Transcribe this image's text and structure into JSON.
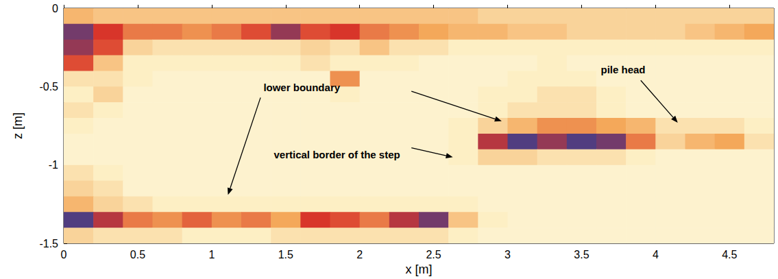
{
  "chart_data": {
    "type": "heatmap",
    "x_label": "x [m]",
    "y_label": "z [m]",
    "xlim": [
      0,
      4.8
    ],
    "ylim": [
      -1.5,
      0
    ],
    "xticks": [
      0,
      0.5,
      1,
      1.5,
      2,
      2.5,
      3,
      3.5,
      4,
      4.5
    ],
    "yticks": [
      -1.5,
      -1,
      -0.5,
      0
    ],
    "grid": false,
    "tick_labels": true,
    "x": [
      0.1,
      0.3,
      0.5,
      0.7,
      0.9,
      1.1,
      1.3,
      1.5,
      1.7,
      1.9,
      2.1,
      2.3,
      2.5,
      2.7,
      2.9,
      3.1,
      3.3,
      3.5,
      3.7,
      3.9,
      4.1,
      4.3,
      4.5,
      4.7
    ],
    "z": [
      -0.05,
      -0.15,
      -0.25,
      -0.35,
      -0.45,
      -0.55,
      -0.65,
      -0.75,
      -0.85,
      -0.95,
      -1.05,
      -1.15,
      -1.25,
      -1.35,
      -1.45
    ],
    "cells": [
      [
        0.45,
        0.4,
        0.4,
        0.4,
        0.4,
        0.4,
        0.4,
        0.4,
        0.4,
        0.4,
        0.4,
        0.4,
        0.4,
        0.4,
        0.35,
        0.35,
        0.35,
        0.35,
        0.35,
        0.35,
        0.35,
        0.35,
        0.35,
        0.35
      ],
      [
        0.9,
        0.75,
        0.6,
        0.6,
        0.55,
        0.6,
        0.7,
        0.85,
        0.7,
        0.75,
        0.6,
        0.55,
        0.5,
        0.45,
        0.45,
        0.4,
        0.4,
        0.35,
        0.35,
        0.35,
        0.35,
        0.4,
        0.45,
        0.5
      ],
      [
        0.85,
        0.7,
        0.35,
        0.3,
        0.3,
        0.3,
        0.3,
        0.3,
        0.35,
        0.3,
        0.4,
        0.3,
        0.3,
        0.25,
        0.25,
        0.25,
        0.25,
        0.25,
        0.25,
        0.25,
        0.25,
        0.25,
        0.25,
        0.25
      ],
      [
        0.7,
        0.4,
        0.25,
        0.25,
        0.25,
        0.25,
        0.25,
        0.25,
        0.3,
        0.25,
        0.25,
        0.25,
        0.2,
        0.2,
        0.2,
        0.2,
        0.25,
        0.2,
        0.2,
        0.2,
        0.2,
        0.2,
        0.2,
        0.2
      ],
      [
        0.3,
        0.3,
        0.25,
        0.2,
        0.2,
        0.2,
        0.2,
        0.2,
        0.2,
        0.55,
        0.2,
        0.2,
        0.2,
        0.2,
        0.2,
        0.25,
        0.25,
        0.25,
        0.2,
        0.2,
        0.2,
        0.2,
        0.2,
        0.2
      ],
      [
        0.25,
        0.35,
        0.2,
        0.2,
        0.2,
        0.2,
        0.2,
        0.2,
        0.2,
        0.25,
        0.2,
        0.2,
        0.2,
        0.2,
        0.25,
        0.25,
        0.3,
        0.3,
        0.25,
        0.2,
        0.2,
        0.2,
        0.2,
        0.2
      ],
      [
        0.3,
        0.25,
        0.2,
        0.2,
        0.2,
        0.2,
        0.2,
        0.2,
        0.2,
        0.2,
        0.2,
        0.2,
        0.2,
        0.2,
        0.25,
        0.3,
        0.3,
        0.3,
        0.25,
        0.2,
        0.2,
        0.2,
        0.2,
        0.2
      ],
      [
        0.25,
        0.2,
        0.2,
        0.2,
        0.2,
        0.2,
        0.2,
        0.2,
        0.2,
        0.2,
        0.2,
        0.2,
        0.2,
        0.25,
        0.35,
        0.45,
        0.55,
        0.55,
        0.5,
        0.45,
        0.3,
        0.3,
        0.3,
        0.25
      ],
      [
        0.2,
        0.2,
        0.2,
        0.2,
        0.2,
        0.2,
        0.2,
        0.2,
        0.2,
        0.2,
        0.2,
        0.2,
        0.2,
        0.25,
        0.8,
        0.95,
        0.85,
        0.95,
        0.9,
        0.6,
        0.35,
        0.45,
        0.5,
        0.3
      ],
      [
        0.2,
        0.2,
        0.2,
        0.2,
        0.2,
        0.2,
        0.2,
        0.2,
        0.2,
        0.2,
        0.2,
        0.2,
        0.2,
        0.25,
        0.35,
        0.35,
        0.3,
        0.3,
        0.3,
        0.25,
        0.2,
        0.2,
        0.2,
        0.2
      ],
      [
        0.3,
        0.25,
        0.2,
        0.2,
        0.2,
        0.2,
        0.2,
        0.2,
        0.2,
        0.2,
        0.2,
        0.2,
        0.2,
        0.2,
        0.2,
        0.2,
        0.2,
        0.2,
        0.2,
        0.2,
        0.2,
        0.2,
        0.2,
        0.2
      ],
      [
        0.35,
        0.3,
        0.2,
        0.2,
        0.2,
        0.2,
        0.2,
        0.2,
        0.2,
        0.2,
        0.2,
        0.2,
        0.2,
        0.2,
        0.2,
        0.2,
        0.2,
        0.2,
        0.2,
        0.2,
        0.2,
        0.2,
        0.2,
        0.2
      ],
      [
        0.45,
        0.35,
        0.3,
        0.25,
        0.25,
        0.25,
        0.25,
        0.25,
        0.25,
        0.25,
        0.25,
        0.25,
        0.25,
        0.25,
        0.2,
        0.2,
        0.2,
        0.2,
        0.2,
        0.2,
        0.2,
        0.2,
        0.2,
        0.2
      ],
      [
        0.95,
        0.8,
        0.6,
        0.55,
        0.65,
        0.55,
        0.6,
        0.5,
        0.75,
        0.7,
        0.6,
        0.8,
        0.9,
        0.4,
        0.25,
        0.2,
        0.2,
        0.2,
        0.2,
        0.2,
        0.2,
        0.2,
        0.2,
        0.2
      ],
      [
        0.35,
        0.3,
        0.3,
        0.3,
        0.25,
        0.25,
        0.25,
        0.3,
        0.3,
        0.3,
        0.3,
        0.3,
        0.3,
        0.25,
        0.2,
        0.2,
        0.2,
        0.2,
        0.2,
        0.2,
        0.2,
        0.2,
        0.2,
        0.2
      ]
    ],
    "color_range": [
      0,
      1
    ],
    "color_scale": [
      "#fffef8",
      "#fdefc4",
      "#f4a85a",
      "#d8352a",
      "#2f3f96"
    ],
    "annotations": [
      {
        "text": "lower boundary",
        "x": 1.35,
        "y": -0.47,
        "arrows": [
          {
            "from": [
              1.33,
              -0.57
            ],
            "to": [
              1.11,
              -1.19
            ]
          },
          {
            "from": [
              2.35,
              -0.53
            ],
            "to": [
              2.96,
              -0.72
            ]
          }
        ]
      },
      {
        "text": "vertical border of the step",
        "x": 1.42,
        "y": -0.9,
        "arrows": [
          {
            "from": [
              2.35,
              -0.89
            ],
            "to": [
              2.63,
              -0.95
            ]
          }
        ]
      },
      {
        "text": "pile head",
        "x": 3.63,
        "y": -0.36,
        "arrows": [
          {
            "from": [
              3.9,
              -0.46
            ],
            "to": [
              4.15,
              -0.73
            ]
          }
        ]
      }
    ]
  }
}
